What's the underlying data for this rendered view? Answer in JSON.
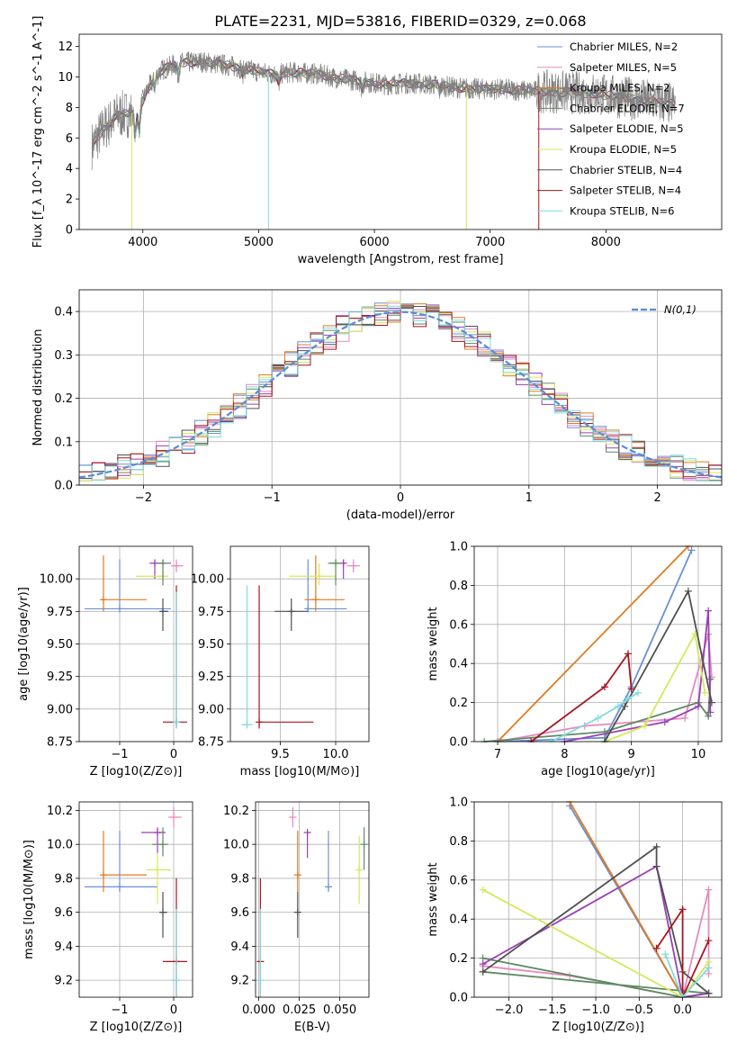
{
  "figure_title": "PLATE=2231, MJD=53816, FIBERID=0329, z=0.068",
  "chart_data": [
    {
      "id": "spectrum",
      "type": "line",
      "title": "PLATE=2231, MJD=53816, FIBERID=0329, z=0.068",
      "xlabel": "wavelength [Angstrom, rest frame]",
      "ylabel": "Flux [f_λ 10^-17 erg cm^-2 s^-1 A^-1]",
      "xlim": [
        3450,
        9000
      ],
      "ylim": [
        0,
        12.8
      ],
      "xticks": [
        4000,
        5000,
        6000,
        7000,
        8000
      ],
      "yticks": [
        0,
        2,
        4,
        6,
        8,
        10,
        12
      ],
      "legend_position": "top-right",
      "data_series": {
        "name": "data",
        "color": "#808080"
      },
      "continuum_points": [
        [
          3560,
          5.5
        ],
        [
          3650,
          6.5
        ],
        [
          3780,
          7.5
        ],
        [
          3900,
          7.6
        ],
        [
          3960,
          7.8
        ],
        [
          4050,
          9.3
        ],
        [
          4150,
          10.4
        ],
        [
          4300,
          10.9
        ],
        [
          4500,
          11.0
        ],
        [
          4700,
          10.8
        ],
        [
          4900,
          10.5
        ],
        [
          5100,
          10.2
        ],
        [
          5300,
          10.3
        ],
        [
          5500,
          10.2
        ],
        [
          5700,
          9.9
        ],
        [
          5900,
          9.7
        ],
        [
          6100,
          9.5
        ],
        [
          6300,
          9.6
        ],
        [
          6500,
          9.5
        ],
        [
          6700,
          9.3
        ],
        [
          6900,
          9.2
        ],
        [
          7100,
          9.2
        ],
        [
          7300,
          9.1
        ],
        [
          7600,
          9.0
        ],
        [
          7900,
          8.9
        ],
        [
          8200,
          8.6
        ],
        [
          8500,
          8.3
        ],
        [
          8600,
          8.2
        ]
      ],
      "series": [
        {
          "label": "Chabrier MILES, N_SSP=2",
          "color": "#6a8fd8"
        },
        {
          "label": "Salpeter MILES, N_SSP=5",
          "color": "#e58ac0"
        },
        {
          "label": "Kroupa MILES, N_SSP=2",
          "color": "#e07b20"
        },
        {
          "label": "Chabrier ELODIE, N_SSP=7",
          "color": "#5e8a62"
        },
        {
          "label": "Salpeter ELODIE, N_SSP=5",
          "color": "#9a3fb5"
        },
        {
          "label": "Kroupa ELODIE, N_SSP=5",
          "color": "#d6e85a"
        },
        {
          "label": "Chabrier STELIB, N_SSP=4",
          "color": "#505050"
        },
        {
          "label": "Salpeter STELIB, N_SSP=4",
          "color": "#a8161e"
        },
        {
          "label": "Kroupa STELIB, N_SSP=6",
          "color": "#7fdbe0"
        }
      ]
    },
    {
      "id": "residuals",
      "type": "histogram",
      "xlabel": "(data-model)/error",
      "ylabel": "Normed distribution",
      "xlim": [
        -2.5,
        2.5
      ],
      "ylim": [
        0,
        0.45
      ],
      "xticks": [
        -2,
        -1,
        0,
        1,
        2
      ],
      "yticks": [
        0.0,
        0.1,
        0.2,
        0.3,
        0.4
      ],
      "legend_position": "top-right",
      "legend_label": "N(0,1)",
      "bin_width": 0.1,
      "reference_curve": {
        "name": "N(0,1)",
        "mean": 0,
        "sigma": 1,
        "color": "#5b8bd6"
      }
    },
    {
      "id": "age_vs_Z",
      "type": "errorbar",
      "xlabel": "Z [log10(Z/Z⊙)]",
      "ylabel": "age  [log10(age/yr)]",
      "xlim": [
        -1.75,
        0.35
      ],
      "ylim": [
        8.75,
        10.25
      ],
      "xticks": [
        -1,
        0
      ],
      "yticks": [
        8.75,
        9.0,
        9.25,
        9.5,
        9.75,
        10.0
      ],
      "points": [
        {
          "color": "#6a8fd8",
          "x": -1.0,
          "y": 9.77,
          "xlo": -1.65,
          "xhi": -0.05,
          "ylo": 9.75,
          "yhi": 10.15
        },
        {
          "color": "#e07b20",
          "x": -1.3,
          "y": 9.84,
          "xlo": -1.35,
          "xhi": -0.5,
          "ylo": 9.75,
          "yhi": 10.18
        },
        {
          "color": "#e58ac0",
          "x": 0.05,
          "y": 10.1,
          "xlo": -0.05,
          "xhi": 0.18,
          "ylo": 10.05,
          "yhi": 10.15
        },
        {
          "color": "#9a3fb5",
          "x": -0.35,
          "y": 10.12,
          "xlo": -0.45,
          "xhi": -0.05,
          "ylo": 10.0,
          "yhi": 10.15
        },
        {
          "color": "#d6e85a",
          "x": -0.2,
          "y": 10.02,
          "xlo": -0.7,
          "xhi": -0.1,
          "ylo": 9.95,
          "yhi": 10.12
        },
        {
          "color": "#5e8a62",
          "x": -0.2,
          "y": 10.12,
          "xlo": -0.3,
          "xhi": -0.15,
          "ylo": 9.95,
          "yhi": 10.15
        },
        {
          "color": "#505050",
          "x": -0.2,
          "y": 9.75,
          "xlo": -0.25,
          "xhi": -0.1,
          "ylo": 9.6,
          "yhi": 9.85
        },
        {
          "color": "#a8161e",
          "x": 0.05,
          "y": 8.9,
          "xlo": -0.2,
          "xhi": 0.25,
          "ylo": 8.85,
          "yhi": 9.95
        },
        {
          "color": "#7fdbe0",
          "x": 0.05,
          "y": 8.9,
          "xlo": 0.0,
          "xhi": 0.1,
          "ylo": 8.85,
          "yhi": 9.9
        }
      ]
    },
    {
      "id": "age_vs_mass",
      "type": "errorbar",
      "xlabel": "mass [log10(M/M⊙)]",
      "ylabel": "",
      "xlim": [
        9.05,
        10.3
      ],
      "ylim": [
        8.75,
        10.25
      ],
      "xticks": [
        9.5,
        10.0
      ],
      "yticks": [
        8.75,
        9.0,
        9.25,
        9.5,
        9.75,
        10.0
      ],
      "points": [
        {
          "color": "#6a8fd8",
          "x": 9.75,
          "y": 9.77,
          "xlo": 9.72,
          "xhi": 10.1,
          "ylo": 9.75,
          "yhi": 10.15
        },
        {
          "color": "#e07b20",
          "x": 9.82,
          "y": 9.84,
          "xlo": 9.72,
          "xhi": 10.08,
          "ylo": 9.75,
          "yhi": 10.18
        },
        {
          "color": "#e58ac0",
          "x": 10.16,
          "y": 10.1,
          "xlo": 10.1,
          "xhi": 10.22,
          "ylo": 10.05,
          "yhi": 10.15
        },
        {
          "color": "#9a3fb5",
          "x": 10.07,
          "y": 10.12,
          "xlo": 9.95,
          "xhi": 10.1,
          "ylo": 10.0,
          "yhi": 10.15
        },
        {
          "color": "#d6e85a",
          "x": 9.85,
          "y": 10.02,
          "xlo": 9.58,
          "xhi": 10.0,
          "ylo": 9.95,
          "yhi": 10.12
        },
        {
          "color": "#5e8a62",
          "x": 10.0,
          "y": 10.12,
          "xlo": 9.93,
          "xhi": 10.05,
          "ylo": 9.95,
          "yhi": 10.15
        },
        {
          "color": "#505050",
          "x": 9.6,
          "y": 9.75,
          "xlo": 9.45,
          "xhi": 9.75,
          "ylo": 9.6,
          "yhi": 9.85
        },
        {
          "color": "#a8161e",
          "x": 9.31,
          "y": 8.9,
          "xlo": 9.31,
          "xhi": 9.8,
          "ylo": 8.85,
          "yhi": 9.95
        },
        {
          "color": "#7fdbe0",
          "x": 9.2,
          "y": 8.88,
          "xlo": 9.15,
          "xhi": 9.25,
          "ylo": 8.85,
          "yhi": 9.95
        }
      ]
    },
    {
      "id": "mass_weight_vs_age",
      "type": "line",
      "xlabel": "age  [log10(age/yr)]",
      "ylabel": "mass weight",
      "xlim": [
        6.65,
        10.35
      ],
      "ylim": [
        0,
        1.0
      ],
      "xticks": [
        7,
        8,
        9,
        10
      ],
      "yticks": [
        0.0,
        0.2,
        0.4,
        0.6,
        0.8,
        1.0
      ],
      "series": [
        {
          "color": "#6a8fd8",
          "x": [
            7.0,
            8.6,
            9.0,
            9.9
          ],
          "y": [
            0.0,
            0.02,
            0.28,
            0.98
          ]
        },
        {
          "color": "#e07b20",
          "x": [
            7.0,
            9.85
          ],
          "y": [
            0.0,
            1.0
          ]
        },
        {
          "color": "#e58ac0",
          "x": [
            7.0,
            8.3,
            9.8,
            10.15,
            10.2
          ],
          "y": [
            0.0,
            0.08,
            0.12,
            0.55,
            0.33
          ]
        },
        {
          "color": "#5e8a62",
          "x": [
            6.8,
            8.6,
            10.0,
            10.15,
            10.18
          ],
          "y": [
            0.0,
            0.05,
            0.2,
            0.13,
            0.32
          ]
        },
        {
          "color": "#9a3fb5",
          "x": [
            8.0,
            9.5,
            10.0,
            10.15,
            10.18
          ],
          "y": [
            0.0,
            0.1,
            0.18,
            0.67,
            0.15
          ]
        },
        {
          "color": "#d6e85a",
          "x": [
            8.6,
            9.2,
            9.95,
            10.1
          ],
          "y": [
            0.0,
            0.08,
            0.55,
            0.25
          ]
        },
        {
          "color": "#505050",
          "x": [
            8.6,
            8.9,
            9.85,
            10.2
          ],
          "y": [
            0.0,
            0.18,
            0.77,
            0.2
          ]
        },
        {
          "color": "#a8161e",
          "x": [
            7.5,
            8.6,
            8.95,
            9.0
          ],
          "y": [
            0.0,
            0.28,
            0.45,
            0.27
          ]
        },
        {
          "color": "#7fdbe0",
          "x": [
            7.8,
            8.5,
            8.8,
            8.95,
            9.1
          ],
          "y": [
            0.0,
            0.12,
            0.18,
            0.22,
            0.25
          ]
        }
      ]
    },
    {
      "id": "mass_vs_Z",
      "type": "errorbar",
      "xlabel": "Z [log10(Z/Z⊙)]",
      "ylabel": "mass [log10(M/M⊙)]",
      "xlim": [
        -1.75,
        0.35
      ],
      "ylim": [
        9.1,
        10.25
      ],
      "xticks": [
        -1,
        0
      ],
      "yticks": [
        9.2,
        9.4,
        9.6,
        9.8,
        10.0,
        10.2
      ],
      "points": [
        {
          "color": "#6a8fd8",
          "x": -1.0,
          "y": 9.75,
          "xlo": -1.65,
          "xhi": -0.3,
          "ylo": 9.72,
          "yhi": 10.08
        },
        {
          "color": "#e07b20",
          "x": -1.3,
          "y": 9.82,
          "xlo": -1.35,
          "xhi": -0.5,
          "ylo": 9.72,
          "yhi": 10.08
        },
        {
          "color": "#e58ac0",
          "x": 0.0,
          "y": 10.16,
          "xlo": -0.1,
          "xhi": 0.15,
          "ylo": 10.1,
          "yhi": 10.22
        },
        {
          "color": "#9a3fb5",
          "x": -0.3,
          "y": 10.07,
          "xlo": -0.6,
          "xhi": -0.15,
          "ylo": 9.95,
          "yhi": 10.1
        },
        {
          "color": "#d6e85a",
          "x": -0.3,
          "y": 9.85,
          "xlo": -0.5,
          "xhi": -0.05,
          "ylo": 9.65,
          "yhi": 9.95
        },
        {
          "color": "#5e8a62",
          "x": -0.2,
          "y": 10.0,
          "xlo": -0.4,
          "xhi": -0.1,
          "ylo": 9.93,
          "yhi": 10.1
        },
        {
          "color": "#505050",
          "x": -0.2,
          "y": 9.6,
          "xlo": -0.25,
          "xhi": -0.12,
          "ylo": 9.45,
          "yhi": 9.72
        },
        {
          "color": "#a8161e",
          "x": 0.05,
          "y": 9.31,
          "xlo": -0.2,
          "xhi": 0.25,
          "ylo": 9.1,
          "yhi": 9.8
        },
        {
          "color": "#7fdbe0",
          "x": 0.05,
          "y": 9.2,
          "xlo": -0.05,
          "xhi": 0.12,
          "ylo": 9.1,
          "yhi": 9.62
        }
      ]
    },
    {
      "id": "mass_vs_ebv",
      "type": "errorbar",
      "xlabel": "E(B-V)",
      "ylabel": "",
      "xlim": [
        -0.002,
        0.068
      ],
      "ylim": [
        9.1,
        10.25
      ],
      "xticks": [
        0.0,
        0.025,
        0.05
      ],
      "xtick_labels": [
        "0.000",
        "0.025",
        "0.050"
      ],
      "yticks": [
        9.2,
        9.4,
        9.6,
        9.8,
        10.0,
        10.2
      ],
      "points": [
        {
          "color": "#6a8fd8",
          "x": 0.043,
          "y": 9.75,
          "ylo": 9.72,
          "yhi": 10.08
        },
        {
          "color": "#e07b20",
          "x": 0.024,
          "y": 9.82,
          "ylo": 9.72,
          "yhi": 10.08
        },
        {
          "color": "#e58ac0",
          "x": 0.021,
          "y": 10.16,
          "ylo": 10.1,
          "yhi": 10.22
        },
        {
          "color": "#9a3fb5",
          "x": 0.03,
          "y": 10.07,
          "ylo": 9.92,
          "yhi": 10.08
        },
        {
          "color": "#d6e85a",
          "x": 0.062,
          "y": 9.85,
          "ylo": 9.65,
          "yhi": 10.05
        },
        {
          "color": "#5e8a62",
          "x": 0.065,
          "y": 10.0,
          "ylo": 9.85,
          "yhi": 10.1
        },
        {
          "color": "#505050",
          "x": 0.024,
          "y": 9.6,
          "ylo": 9.45,
          "yhi": 9.72
        },
        {
          "color": "#a8161e",
          "x": 0.001,
          "y": 9.31,
          "ylo": 9.1,
          "yhi": 9.8
        },
        {
          "color": "#7fdbe0",
          "x": 0.001,
          "y": 9.2,
          "ylo": 9.1,
          "yhi": 9.62
        }
      ]
    },
    {
      "id": "mass_weight_vs_Z",
      "type": "line",
      "xlabel": "Z [log10(Z/Z⊙)]",
      "ylabel": "mass weight",
      "xlim": [
        -2.4,
        0.45
      ],
      "ylim": [
        0,
        1.0
      ],
      "xticks": [
        -2.0,
        -1.5,
        -1.0,
        -0.5,
        0.0
      ],
      "yticks": [
        0.0,
        0.2,
        0.4,
        0.6,
        0.8,
        1.0
      ],
      "series": [
        {
          "color": "#6a8fd8",
          "x": [
            -1.3,
            0.0,
            0.3
          ],
          "y": [
            0.98,
            0.0,
            0.02
          ]
        },
        {
          "color": "#e07b20",
          "x": [
            -1.3,
            0.0
          ],
          "y": [
            1.0,
            0.0
          ]
        },
        {
          "color": "#e58ac0",
          "x": [
            -2.3,
            -1.3,
            0.0,
            0.3,
            0.3
          ],
          "y": [
            0.16,
            0.11,
            0.0,
            0.55,
            0.12
          ]
        },
        {
          "color": "#5e8a62",
          "x": [
            -2.3,
            0.0,
            0.3,
            -2.3
          ],
          "y": [
            0.2,
            0.0,
            0.02,
            0.13
          ]
        },
        {
          "color": "#9a3fb5",
          "x": [
            -2.3,
            -0.3,
            0.0,
            0.3
          ],
          "y": [
            0.17,
            0.67,
            0.0,
            0.02
          ]
        },
        {
          "color": "#d6e85a",
          "x": [
            -2.3,
            0.0,
            0.3
          ],
          "y": [
            0.55,
            0.0,
            0.18
          ]
        },
        {
          "color": "#505050",
          "x": [
            -2.3,
            -0.3,
            -0.3,
            0.0,
            0.3
          ],
          "y": [
            0.13,
            0.77,
            0.67,
            0.13,
            0.02
          ]
        },
        {
          "color": "#a8161e",
          "x": [
            -0.3,
            0.0,
            0.0,
            0.3
          ],
          "y": [
            0.25,
            0.45,
            0.0,
            0.29
          ]
        },
        {
          "color": "#7fdbe0",
          "x": [
            -0.2,
            0.0,
            0.3
          ],
          "y": [
            0.22,
            0.0,
            0.15
          ]
        }
      ]
    }
  ]
}
